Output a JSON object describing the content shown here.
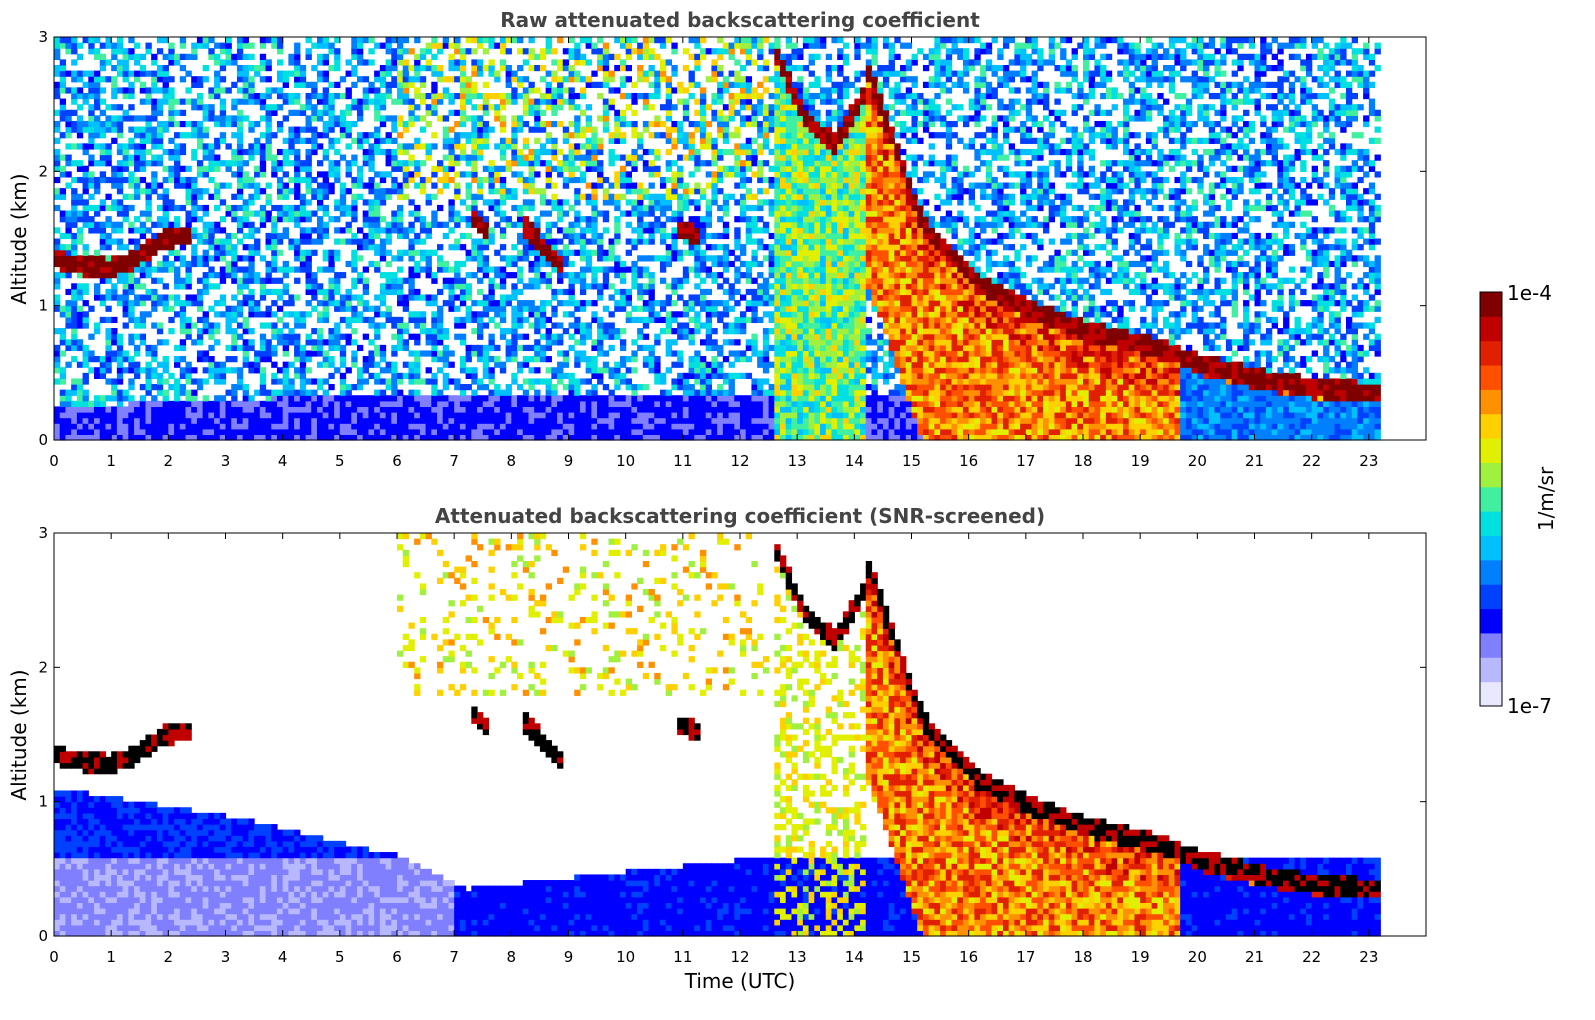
{
  "chart_data": [
    {
      "type": "heatmap",
      "title": "Raw attenuated backscattering coefficient",
      "xlabel": "",
      "ylabel": "Altitude (km)",
      "xlim": [
        0,
        24
      ],
      "ylim": [
        0,
        3
      ],
      "xticks": [
        "0",
        "1",
        "2",
        "3",
        "4",
        "5",
        "6",
        "7",
        "8",
        "9",
        "10",
        "11",
        "12",
        "13",
        "14",
        "15",
        "16",
        "17",
        "18",
        "19",
        "20",
        "21",
        "22",
        "23"
      ],
      "yticks": [
        "0",
        "1",
        "2",
        "3"
      ],
      "data_end_time": 23.2,
      "cloud_layers": [
        {
          "t_start": 0.0,
          "t_end": 2.4,
          "alt_km": [
            1.35,
            1.3,
            1.28,
            1.35,
            1.5,
            1.52
          ]
        },
        {
          "t_start": 7.3,
          "t_end": 7.6,
          "alt_km": [
            1.65,
            1.55
          ]
        },
        {
          "t_start": 8.2,
          "t_end": 8.9,
          "alt_km": [
            1.6,
            1.3
          ]
        },
        {
          "t_start": 10.9,
          "t_end": 11.3,
          "alt_km": [
            1.57,
            1.52
          ]
        },
        {
          "t_start": 12.6,
          "t_end": 14.2,
          "alt_km": [
            2.9,
            2.4,
            2.2,
            2.6
          ]
        },
        {
          "t_start": 14.2,
          "t_end": 23.2,
          "alt_km": [
            2.8,
            1.6,
            1.15,
            0.95,
            0.8,
            0.7,
            0.55,
            0.45,
            0.38,
            0.36
          ]
        }
      ],
      "boundary_layer_top_km": [
        {
          "t": 0,
          "alt": 0.25
        },
        {
          "t": 6,
          "alt": 0.35
        },
        {
          "t": 12.7,
          "alt": 0.35
        }
      ]
    },
    {
      "type": "heatmap",
      "title": "Attenuated backscattering coefficient (SNR-screened)",
      "xlabel": "Time (UTC)",
      "ylabel": "Altitude (km)",
      "xlim": [
        0,
        24
      ],
      "ylim": [
        0,
        3
      ],
      "xticks": [
        "0",
        "1",
        "2",
        "3",
        "4",
        "5",
        "6",
        "7",
        "8",
        "9",
        "10",
        "11",
        "12",
        "13",
        "14",
        "15",
        "16",
        "17",
        "18",
        "19",
        "20",
        "21",
        "22",
        "23"
      ],
      "yticks": [
        "0",
        "1",
        "2",
        "3"
      ],
      "data_end_time": 23.2,
      "screened_aerosol_top_km": [
        {
          "t": 0,
          "alt": 1.1
        },
        {
          "t": 3,
          "alt": 0.9
        },
        {
          "t": 6,
          "alt": 0.6
        },
        {
          "t": 7.2,
          "alt": 0.35
        },
        {
          "t": 12.7,
          "alt": 0.6
        }
      ]
    }
  ],
  "colorbar": {
    "label": "1/m/sr",
    "max_label": "1e-4",
    "min_label": "1e-7",
    "colors": [
      "#e8e8ff",
      "#b8b8ff",
      "#8080ff",
      "#0000ff",
      "#0040ff",
      "#0080ff",
      "#00c0ff",
      "#00e0e0",
      "#40f0a0",
      "#a0f040",
      "#e0f000",
      "#ffd000",
      "#ff9000",
      "#ff5000",
      "#e02000",
      "#c00000",
      "#800000"
    ]
  },
  "colors": {
    "frame": "#000000",
    "title": "#444444",
    "screened_cloud_core": "#000000"
  }
}
